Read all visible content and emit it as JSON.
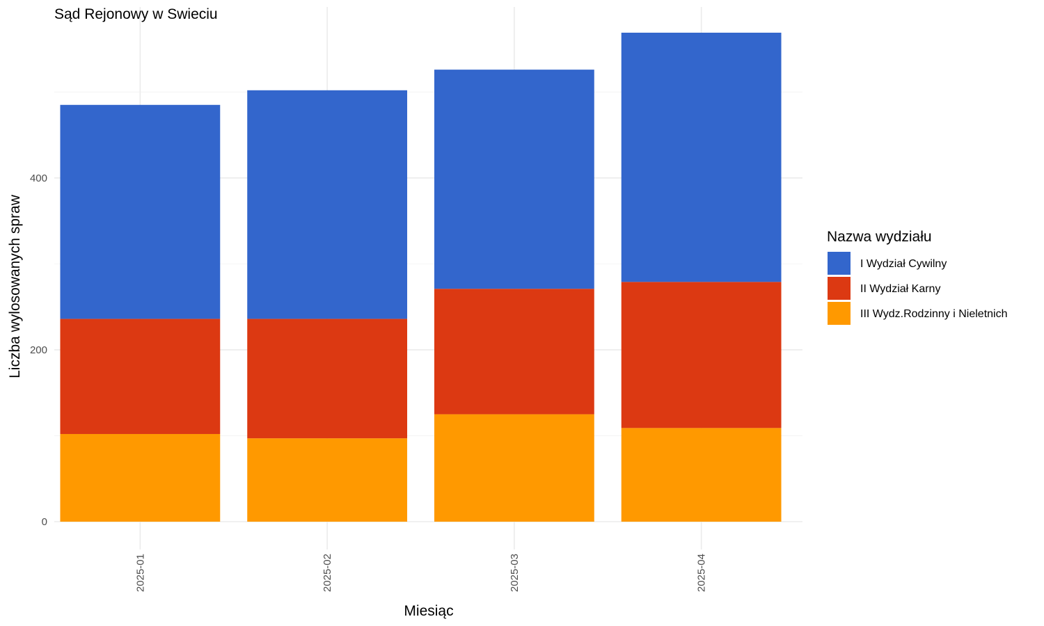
{
  "chart_data": {
    "type": "bar",
    "stacked": true,
    "title": "Sąd Rejonowy w Swieciu",
    "xlabel": "Miesiąc",
    "ylabel": "Liczba wylosowanych spraw",
    "categories": [
      "2025-01",
      "2025-02",
      "2025-03",
      "2025-04"
    ],
    "ylim": [
      0,
      570
    ],
    "yticks": [
      0,
      200,
      400
    ],
    "grid": true,
    "legend": {
      "title": "Nazwa wydziału",
      "placement": "right"
    },
    "series": [
      {
        "name": "III Wydz.Rodzinny i Nieletnich",
        "color": "#FF9900",
        "values": [
          102,
          97,
          125,
          109
        ]
      },
      {
        "name": "II Wydział Karny",
        "color": "#DC3912",
        "values": [
          134,
          139,
          146,
          170
        ]
      },
      {
        "name": "I Wydział Cywilny",
        "color": "#3366CC",
        "values": [
          249,
          266,
          255,
          290
        ]
      }
    ],
    "legend_order": [
      "I Wydział Cywilny",
      "II Wydział Karny",
      "III Wydz.Rodzinny i Nieletnich"
    ]
  }
}
